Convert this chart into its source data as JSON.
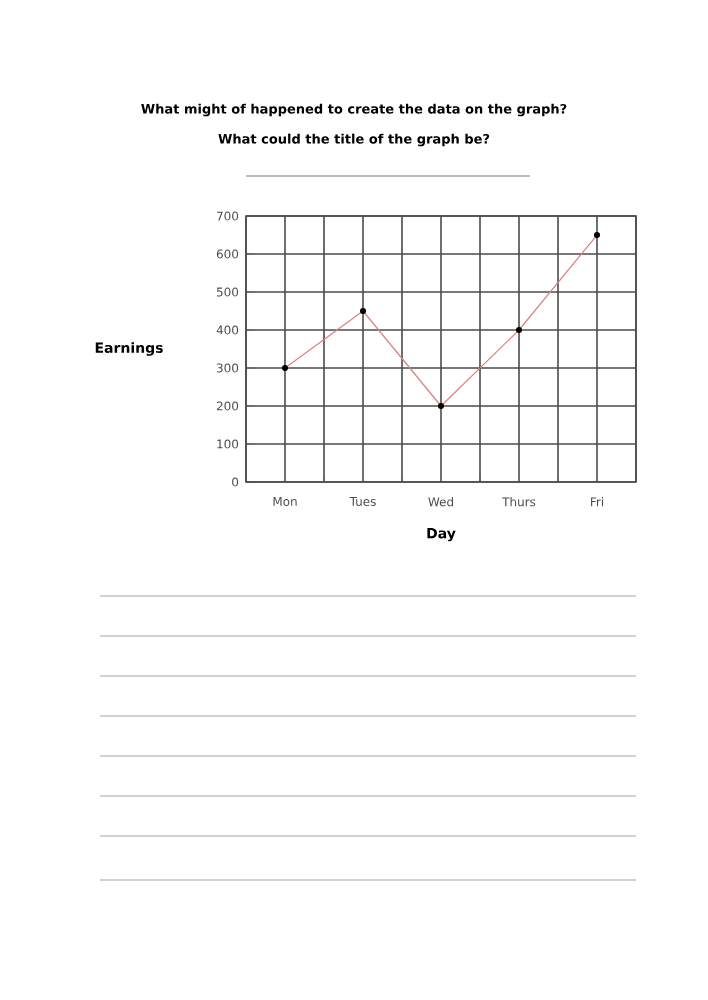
{
  "chart_data": {
    "type": "line",
    "title": "What might of happened to create the data on the graph?",
    "subtitle": "What could the title of the graph be?",
    "xlabel": "Day",
    "ylabel": "Earnings",
    "categories": [
      "Mon",
      "Tues",
      "Wed",
      "Thurs",
      "Fri"
    ],
    "values": [
      300,
      450,
      200,
      400,
      650
    ],
    "color": "#d98080",
    "ylim": [
      0,
      700
    ],
    "yticks": [
      0,
      100,
      200,
      300,
      400,
      500,
      600,
      700
    ],
    "grid": true,
    "marker": "circle"
  }
}
